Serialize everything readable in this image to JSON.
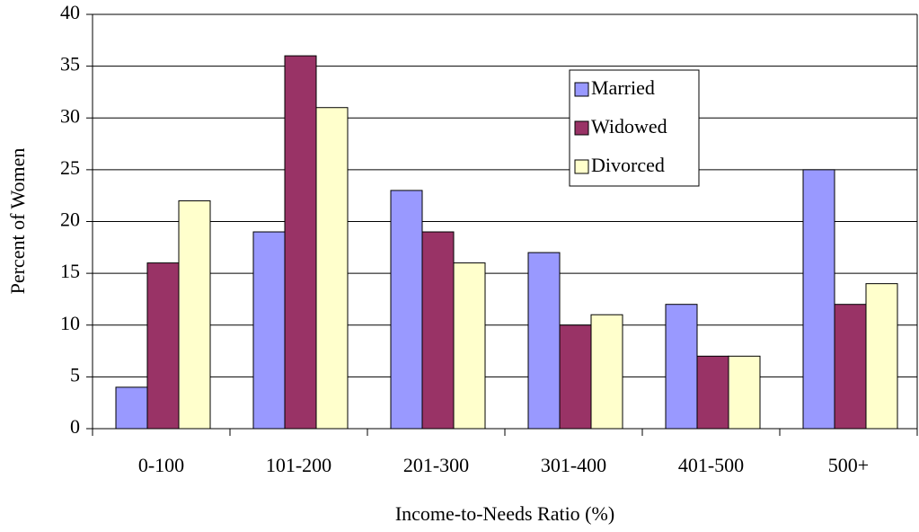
{
  "chart_data": {
    "type": "bar",
    "x_label": "Income-to-Needs Ratio (%)",
    "y_label": "Percent of Women",
    "categories": [
      "0-100",
      "101-200",
      "201-300",
      "301-400",
      "401-500",
      "500+"
    ],
    "series": [
      {
        "name": "Married",
        "color": "#9999ff",
        "values": [
          4,
          19,
          23,
          17,
          12,
          25
        ]
      },
      {
        "name": "Widowed",
        "color": "#993366",
        "values": [
          16,
          36,
          19,
          10,
          7,
          12
        ]
      },
      {
        "name": "Divorced",
        "color": "#ffffcc",
        "values": [
          22,
          31,
          16,
          11,
          7,
          14
        ]
      }
    ],
    "ylim": [
      0,
      40
    ],
    "yticks": [
      0,
      5,
      10,
      15,
      20,
      25,
      30,
      35,
      40
    ],
    "grid": true
  }
}
